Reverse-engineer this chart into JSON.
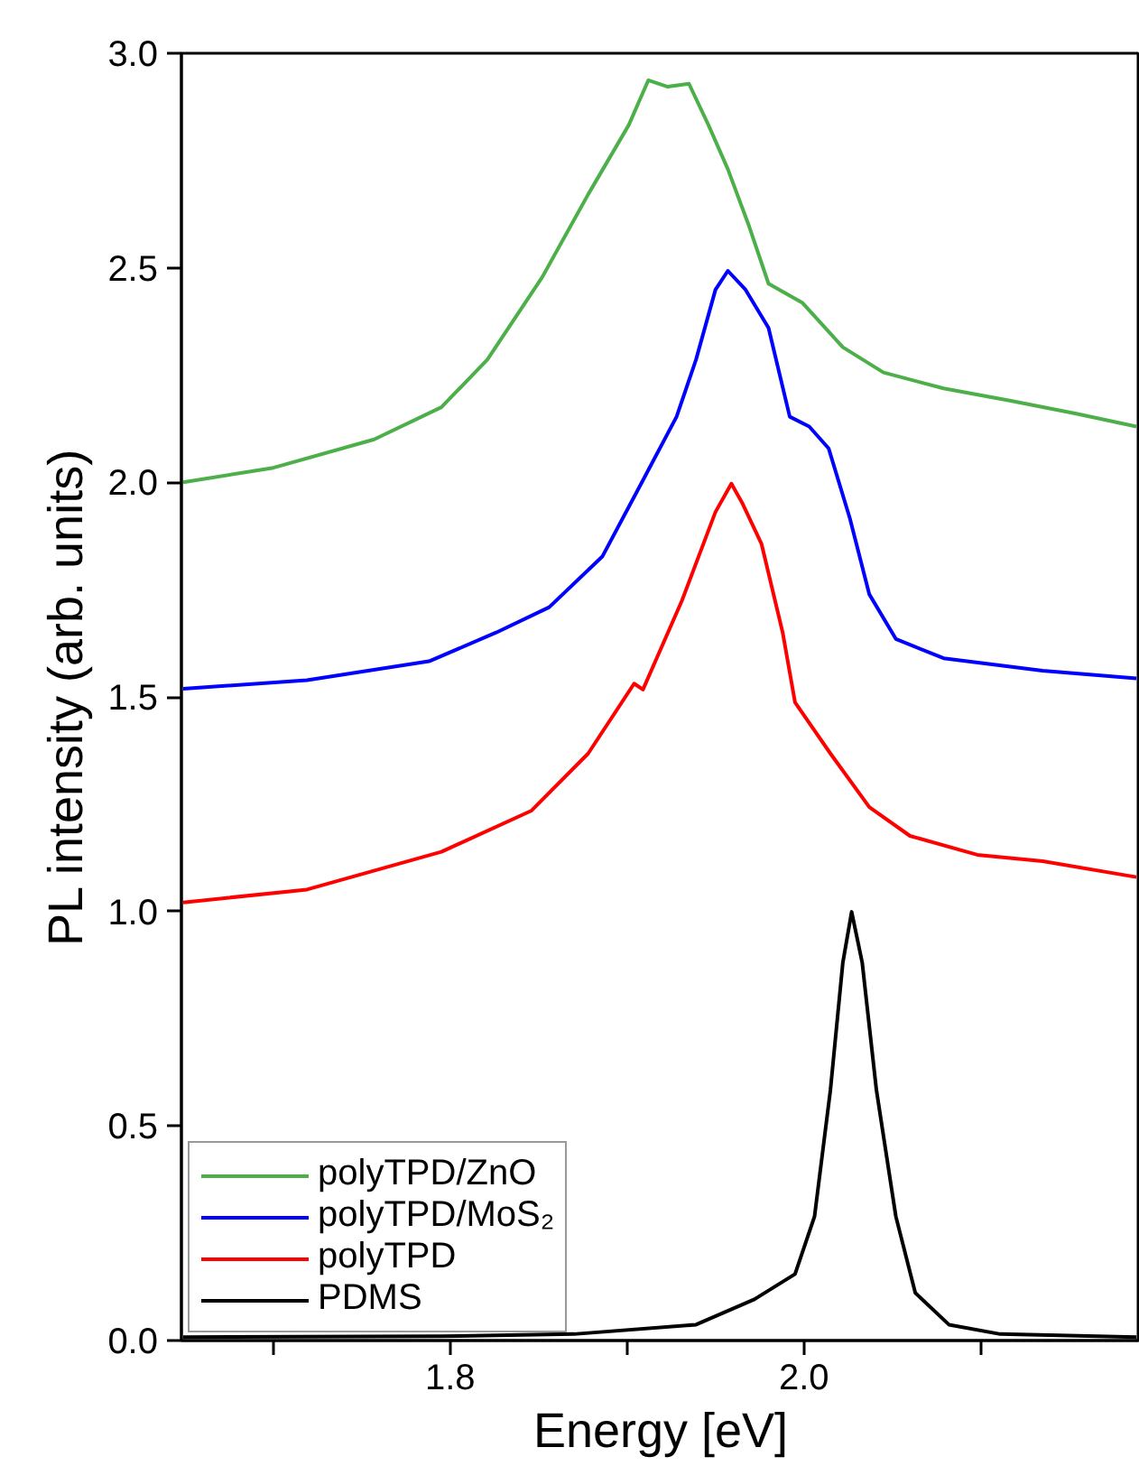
{
  "chart_data": {
    "type": "line",
    "xlabel": "Energy [eV]",
    "ylabel": "PL intensity (arb. units)",
    "xlim": [
      1.648,
      2.19
    ],
    "ylim": [
      0,
      3.0
    ],
    "xticks": [
      {
        "value": 1.7,
        "label": null
      },
      1.8,
      {
        "value": 1.9,
        "label": null
      },
      {
        "value": 2.0,
        "label": "2.0"
      },
      {
        "value": 2.1,
        "label": null
      }
    ],
    "yticks": [
      {
        "value": 0,
        "label": "0.0"
      },
      0.5,
      {
        "value": 1,
        "label": "1.0"
      },
      1.5,
      {
        "value": 2,
        "label": "2.0"
      },
      2.5,
      {
        "value": 3,
        "label": "3.0"
      }
    ],
    "grid": false,
    "legend": "bottom left",
    "marker": "none",
    "line_style": "solid",
    "series": [
      {
        "name": "polyTPD/ZnO",
        "color": "#4daf4a",
        "x": [
          1.649,
          1.7,
          1.757,
          1.795,
          1.821,
          1.852,
          1.878,
          1.901,
          1.912,
          1.923,
          1.935,
          1.946,
          1.957,
          1.969,
          1.98,
          1.999,
          2.022,
          2.045,
          2.079,
          2.117,
          2.154,
          2.188
        ],
        "values": [
          2.0,
          2.034,
          2.1,
          2.175,
          2.286,
          2.478,
          2.671,
          2.833,
          2.937,
          2.922,
          2.929,
          2.833,
          2.73,
          2.597,
          2.463,
          2.419,
          2.315,
          2.256,
          2.219,
          2.19,
          2.16,
          2.13
        ]
      },
      {
        "name": "polyTPD/MoS₂",
        "color": "#0000ff",
        "x": [
          1.649,
          1.719,
          1.788,
          1.826,
          1.856,
          1.886,
          1.909,
          1.928,
          1.939,
          1.95,
          1.957,
          1.967,
          1.98,
          1.992,
          2.003,
          2.014,
          2.026,
          2.037,
          2.052,
          2.079,
          2.135,
          2.188
        ],
        "values": [
          1.519,
          1.539,
          1.583,
          1.65,
          1.709,
          1.827,
          2.005,
          2.153,
          2.286,
          2.449,
          2.493,
          2.449,
          2.36,
          2.153,
          2.13,
          2.079,
          1.916,
          1.739,
          1.635,
          1.59,
          1.561,
          1.543
        ]
      },
      {
        "name": "polyTPD",
        "color": "#ff0000",
        "x": [
          1.649,
          1.719,
          1.795,
          1.846,
          1.878,
          1.904,
          1.909,
          1.931,
          1.95,
          1.959,
          1.965,
          1.976,
          1.988,
          1.995,
          2.015,
          2.037,
          2.06,
          2.098,
          2.135,
          2.188
        ],
        "values": [
          1.021,
          1.051,
          1.139,
          1.235,
          1.368,
          1.531,
          1.517,
          1.724,
          1.931,
          1.997,
          1.953,
          1.857,
          1.65,
          1.487,
          1.368,
          1.243,
          1.176,
          1.132,
          1.117,
          1.08
        ]
      },
      {
        "name": "PDMS",
        "color": "#000000",
        "x": [
          1.649,
          1.795,
          1.87,
          1.939,
          1.972,
          1.995,
          2.006,
          2.015,
          2.022,
          2.027,
          2.033,
          2.041,
          2.052,
          2.063,
          2.082,
          2.111,
          2.188
        ],
        "values": [
          0.008,
          0.01,
          0.015,
          0.037,
          0.096,
          0.155,
          0.289,
          0.584,
          0.88,
          0.999,
          0.88,
          0.584,
          0.289,
          0.111,
          0.037,
          0.015,
          0.008
        ]
      }
    ]
  }
}
